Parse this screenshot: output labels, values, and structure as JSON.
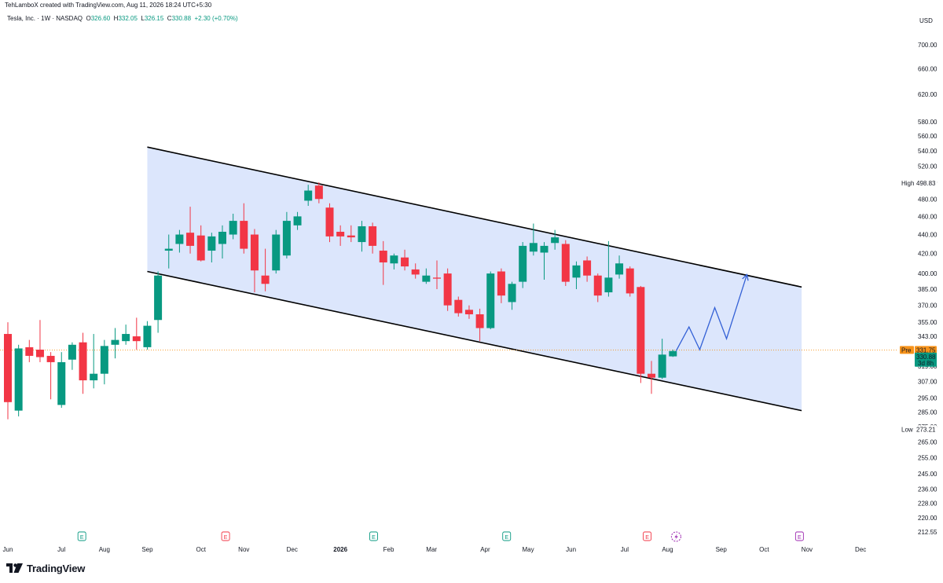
{
  "header": {
    "attribution": "TehLamboX created with TradingView.com, Aug 11, 2026 18:24 UTC+5:30"
  },
  "legend": {
    "symbol": "Tesla, Inc. · 1W · NASDAQ",
    "open_label": "O",
    "open": "326.60",
    "high_label": "H",
    "high": "332.05",
    "low_label": "L",
    "low": "326.15",
    "close_label": "C",
    "close": "330.88",
    "change": "+2.30 (+0.70%)"
  },
  "currency": "USD",
  "footer": {
    "brand": "TradingView"
  },
  "colors": {
    "up": "#089981",
    "down": "#F23645",
    "channel_fill": "#D6E2FB",
    "projection": "#3461D6",
    "prepost": "#F7931A"
  },
  "chart_data": {
    "type": "candlestick",
    "scale": "log",
    "y_ticks": [
      212.55,
      220.0,
      228.0,
      236.0,
      245.0,
      255.0,
      265.0,
      275.0,
      285.0,
      295.0,
      307.0,
      319.0,
      331.0,
      343.0,
      355.0,
      370.0,
      385.0,
      400.0,
      420.0,
      440.0,
      460.0,
      480.0,
      500.0,
      520.0,
      540.0,
      560.0,
      580.0,
      620.0,
      660.0,
      700.0
    ],
    "y_tick_labels": [
      "212.55",
      "220.00",
      "228.00",
      "236.00",
      "245.00",
      "255.00",
      "265.00",
      "275.00",
      "285.00",
      "295.00",
      "307.00",
      "319.00",
      "331.00",
      "343.00",
      "355.00",
      "370.00",
      "385.00",
      "400.00",
      "420.00",
      "440.00",
      "460.00",
      "480.00",
      "500.00",
      "520.00",
      "540.00",
      "560.00",
      "580.00",
      "620.00",
      "660.00",
      "700.00"
    ],
    "x_ticks": [
      {
        "label": "Jun",
        "week": 0
      },
      {
        "label": "Jul",
        "week": 5
      },
      {
        "label": "Aug",
        "week": 9
      },
      {
        "label": "Sep",
        "week": 13
      },
      {
        "label": "Oct",
        "week": 18
      },
      {
        "label": "Nov",
        "week": 22
      },
      {
        "label": "Dec",
        "week": 26.5
      },
      {
        "label": "2026",
        "week": 31
      },
      {
        "label": "Feb",
        "week": 35.5
      },
      {
        "label": "Mar",
        "week": 39.5
      },
      {
        "label": "Apr",
        "week": 44.5
      },
      {
        "label": "May",
        "week": 48.5
      },
      {
        "label": "Jun",
        "week": 52.5
      },
      {
        "label": "Jul",
        "week": 57.5
      },
      {
        "label": "Aug",
        "week": 61.5
      },
      {
        "label": "Sep",
        "week": 66.5
      },
      {
        "label": "Oct",
        "week": 70.5
      },
      {
        "label": "Nov",
        "week": 74.5
      },
      {
        "label": "Dec",
        "week": 79.5
      }
    ],
    "candles": [
      {
        "w": 0,
        "o": 345,
        "h": 355,
        "l": 280,
        "c": 292
      },
      {
        "w": 1,
        "o": 286,
        "h": 336,
        "l": 282,
        "c": 333
      },
      {
        "w": 2,
        "o": 334,
        "h": 340,
        "l": 322,
        "c": 327
      },
      {
        "w": 3,
        "o": 332,
        "h": 357,
        "l": 322,
        "c": 326
      },
      {
        "w": 4,
        "o": 327,
        "h": 330,
        "l": 294,
        "c": 322
      },
      {
        "w": 5,
        "o": 290,
        "h": 330,
        "l": 288,
        "c": 322
      },
      {
        "w": 6,
        "o": 324,
        "h": 338,
        "l": 316,
        "c": 336
      },
      {
        "w": 7,
        "o": 338,
        "h": 346,
        "l": 298,
        "c": 308
      },
      {
        "w": 8,
        "o": 308,
        "h": 345,
        "l": 302,
        "c": 313
      },
      {
        "w": 9,
        "o": 313,
        "h": 340,
        "l": 305,
        "c": 335
      },
      {
        "w": 10,
        "o": 336,
        "h": 350,
        "l": 325,
        "c": 340
      },
      {
        "w": 11,
        "o": 339,
        "h": 353,
        "l": 336,
        "c": 345
      },
      {
        "w": 12,
        "o": 343,
        "h": 359,
        "l": 332,
        "c": 339
      },
      {
        "w": 13,
        "o": 334,
        "h": 356,
        "l": 332,
        "c": 352
      },
      {
        "w": 14,
        "o": 357,
        "h": 402,
        "l": 346,
        "c": 398
      },
      {
        "w": 15,
        "o": 423,
        "h": 440,
        "l": 405,
        "c": 425
      },
      {
        "w": 16,
        "o": 430,
        "h": 445,
        "l": 421,
        "c": 440
      },
      {
        "w": 17,
        "o": 442,
        "h": 471,
        "l": 420,
        "c": 428
      },
      {
        "w": 18,
        "o": 439,
        "h": 450,
        "l": 412,
        "c": 413
      },
      {
        "w": 19,
        "o": 423,
        "h": 442,
        "l": 411,
        "c": 438
      },
      {
        "w": 20,
        "o": 430,
        "h": 450,
        "l": 415,
        "c": 443
      },
      {
        "w": 21,
        "o": 440,
        "h": 463,
        "l": 435,
        "c": 455
      },
      {
        "w": 22,
        "o": 455,
        "h": 475,
        "l": 420,
        "c": 425
      },
      {
        "w": 23,
        "o": 440,
        "h": 446,
        "l": 382,
        "c": 403
      },
      {
        "w": 24,
        "o": 398,
        "h": 425,
        "l": 383,
        "c": 390
      },
      {
        "w": 25,
        "o": 403,
        "h": 445,
        "l": 400,
        "c": 440
      },
      {
        "w": 26,
        "o": 418,
        "h": 465,
        "l": 415,
        "c": 455
      },
      {
        "w": 27,
        "o": 450,
        "h": 465,
        "l": 445,
        "c": 460
      },
      {
        "w": 28,
        "o": 478,
        "h": 497,
        "l": 472,
        "c": 490
      },
      {
        "w": 29,
        "o": 496,
        "h": 500,
        "l": 475,
        "c": 480
      },
      {
        "w": 30,
        "o": 470,
        "h": 475,
        "l": 432,
        "c": 438
      },
      {
        "w": 31,
        "o": 443,
        "h": 450,
        "l": 428,
        "c": 438
      },
      {
        "w": 32,
        "o": 439,
        "h": 450,
        "l": 432,
        "c": 437
      },
      {
        "w": 33,
        "o": 432,
        "h": 455,
        "l": 422,
        "c": 449
      },
      {
        "w": 34,
        "o": 449,
        "h": 453,
        "l": 420,
        "c": 428
      },
      {
        "w": 35,
        "o": 423,
        "h": 433,
        "l": 389,
        "c": 411
      },
      {
        "w": 36,
        "o": 410,
        "h": 420,
        "l": 404,
        "c": 418
      },
      {
        "w": 37,
        "o": 416,
        "h": 424,
        "l": 403,
        "c": 407
      },
      {
        "w": 38,
        "o": 404,
        "h": 410,
        "l": 395,
        "c": 399
      },
      {
        "w": 39,
        "o": 392,
        "h": 405,
        "l": 390,
        "c": 398
      },
      {
        "w": 40,
        "o": 396,
        "h": 413,
        "l": 385,
        "c": 395
      },
      {
        "w": 41,
        "o": 400,
        "h": 405,
        "l": 365,
        "c": 370
      },
      {
        "w": 42,
        "o": 375,
        "h": 378,
        "l": 360,
        "c": 363
      },
      {
        "w": 43,
        "o": 366,
        "h": 370,
        "l": 358,
        "c": 362
      },
      {
        "w": 44,
        "o": 362,
        "h": 367,
        "l": 339,
        "c": 350
      },
      {
        "w": 45,
        "o": 350,
        "h": 402,
        "l": 349,
        "c": 400
      },
      {
        "w": 46,
        "o": 402,
        "h": 405,
        "l": 372,
        "c": 379
      },
      {
        "w": 47,
        "o": 373,
        "h": 392,
        "l": 366,
        "c": 390
      },
      {
        "w": 48,
        "o": 392,
        "h": 432,
        "l": 386,
        "c": 428
      },
      {
        "w": 49,
        "o": 422,
        "h": 452,
        "l": 418,
        "c": 431
      },
      {
        "w": 50,
        "o": 421,
        "h": 432,
        "l": 394,
        "c": 428
      },
      {
        "w": 51,
        "o": 431,
        "h": 445,
        "l": 424,
        "c": 437
      },
      {
        "w": 52,
        "o": 430,
        "h": 434,
        "l": 388,
        "c": 392
      },
      {
        "w": 53,
        "o": 396,
        "h": 412,
        "l": 385,
        "c": 408
      },
      {
        "w": 54,
        "o": 413,
        "h": 417,
        "l": 392,
        "c": 398
      },
      {
        "w": 55,
        "o": 398,
        "h": 400,
        "l": 373,
        "c": 379
      },
      {
        "w": 56,
        "o": 382,
        "h": 433,
        "l": 378,
        "c": 396
      },
      {
        "w": 57,
        "o": 399,
        "h": 418,
        "l": 395,
        "c": 410
      },
      {
        "w": 58,
        "o": 405,
        "h": 407,
        "l": 378,
        "c": 381
      },
      {
        "w": 59,
        "o": 387,
        "h": 388,
        "l": 306,
        "c": 313
      },
      {
        "w": 60,
        "o": 313,
        "h": 323,
        "l": 298,
        "c": 310
      },
      {
        "w": 61,
        "o": 310,
        "h": 341,
        "l": 309,
        "c": 328
      },
      {
        "w": 62,
        "o": 326.6,
        "h": 332.05,
        "l": 326.15,
        "c": 330.88
      }
    ],
    "channel": {
      "upper": [
        {
          "w": 13,
          "v": 545
        },
        {
          "w": 74,
          "v": 387
        }
      ],
      "lower": [
        {
          "w": 13,
          "v": 402
        },
        {
          "w": 74,
          "v": 286
        }
      ]
    },
    "projection_path": [
      {
        "w": 62.3,
        "v": 331
      },
      {
        "w": 63.5,
        "v": 351
      },
      {
        "w": 64.5,
        "v": 332
      },
      {
        "w": 65.9,
        "v": 368
      },
      {
        "w": 67,
        "v": 341
      },
      {
        "w": 68.9,
        "v": 399
      }
    ],
    "current_price": {
      "value": 331.75,
      "label": "331.75",
      "tag": "Pre"
    },
    "last_close": {
      "value": 330.88,
      "label": "330.88",
      "countdown": "3d 8h"
    },
    "high_marker": {
      "value": 498.83,
      "label": "498.83",
      "tag": "High"
    },
    "low_marker": {
      "value": 273.21,
      "label": "273.21",
      "tag": "Low"
    },
    "earnings_markers": [
      {
        "w": 6.9,
        "kind": "up",
        "label": "E"
      },
      {
        "w": 20.3,
        "kind": "down",
        "label": "E"
      },
      {
        "w": 34.1,
        "kind": "up",
        "label": "E"
      },
      {
        "w": 46.5,
        "kind": "up",
        "label": "E"
      },
      {
        "w": 59.6,
        "kind": "down",
        "label": "E"
      },
      {
        "w": 73.8,
        "kind": "future",
        "label": "E"
      }
    ],
    "split_marker": {
      "w": 62.3
    }
  }
}
